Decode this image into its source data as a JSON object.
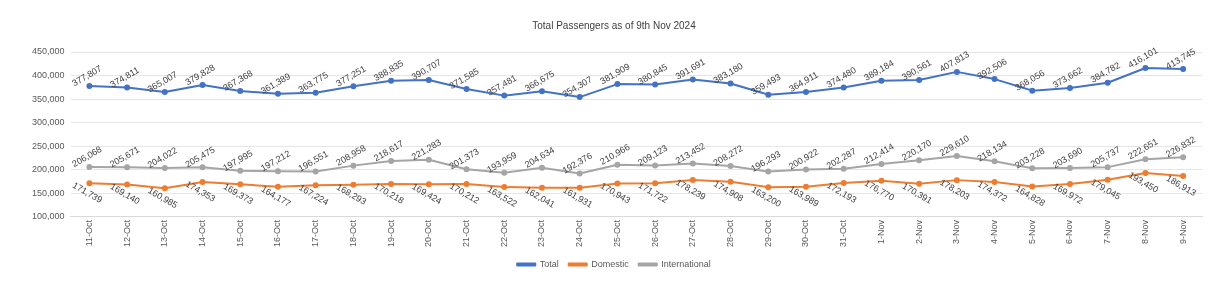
{
  "chart_data": {
    "type": "line",
    "title": "Total Passengers as of 9th Nov 2024",
    "categories": [
      "11-Oct",
      "12-Oct",
      "13-Oct",
      "14-Oct",
      "15-Oct",
      "16-Oct",
      "17-Oct",
      "18-Oct",
      "19-Oct",
      "20-Oct",
      "21-Oct",
      "22-Oct",
      "23-Oct",
      "24-Oct",
      "25-Oct",
      "26-Oct",
      "27-Oct",
      "28-Oct",
      "29-Oct",
      "30-Oct",
      "31-Oct",
      "1-Nov",
      "2-Nov",
      "3-Nov",
      "4-Nov",
      "5-Nov",
      "6-Nov",
      "7-Nov",
      "8-Nov",
      "9-Nov"
    ],
    "series": [
      {
        "name": "Total",
        "color": "#4472c4",
        "values": [
          377807,
          374811,
          365007,
          379828,
          367368,
          361389,
          363775,
          377251,
          388835,
          390707,
          371585,
          357481,
          366675,
          354307,
          381909,
          380845,
          391691,
          383180,
          359493,
          364911,
          374480,
          389184,
          390561,
          407813,
          392506,
          368056,
          373662,
          384782,
          416101,
          413745
        ],
        "value_labels": [
          "377,807",
          "374,811",
          "365,007",
          "379,828",
          "367,368",
          "361,389",
          "363,775",
          "377,251",
          "388,835",
          "390,707",
          "371,585",
          "357,481",
          "366,675",
          "354,307",
          "381,909",
          "380,845",
          "391,691",
          "383,180",
          "359,493",
          "364,911",
          "374,480",
          "389,184",
          "390,561",
          "407,813",
          "392,506",
          "368,056",
          "373,662",
          "384,782",
          "416,101",
          "413,745"
        ]
      },
      {
        "name": "Domestic",
        "color": "#ed7d31",
        "values": [
          171739,
          169140,
          160985,
          174353,
          169373,
          164177,
          167224,
          168293,
          170218,
          169424,
          170212,
          163522,
          162041,
          161931,
          170943,
          171722,
          178239,
          174908,
          163200,
          163989,
          172193,
          176770,
          170391,
          178203,
          174372,
          164828,
          169972,
          179045,
          193450,
          186913
        ],
        "value_labels": [
          "171,739",
          "169,140",
          "160,985",
          "174,353",
          "169,373",
          "164,177",
          "167,224",
          "168,293",
          "170,218",
          "169,424",
          "170,212",
          "163,522",
          "162,041",
          "161,931",
          "170,943",
          "171,722",
          "178,239",
          "174,908",
          "163,200",
          "163,989",
          "172,193",
          "176,770",
          "170,391",
          "178,203",
          "174,372",
          "164,828",
          "169,972",
          "179,045",
          "193,450",
          "186,913"
        ]
      },
      {
        "name": "International",
        "color": "#a5a5a5",
        "values": [
          206068,
          205671,
          204022,
          205475,
          197995,
          197212,
          196551,
          208958,
          218617,
          221283,
          201373,
          193959,
          204634,
          192376,
          210966,
          209123,
          213452,
          208272,
          196293,
          200922,
          202287,
          212414,
          220170,
          229610,
          218134,
          203228,
          203690,
          205737,
          222651,
          226832
        ],
        "value_labels": [
          "206,068",
          "205,671",
          "204,022",
          "205,475",
          "197,995",
          "197,212",
          "196,551",
          "208,958",
          "218,617",
          "221,283",
          "201,373",
          "193,959",
          "204,634",
          "192,376",
          "210,966",
          "209,123",
          "213,452",
          "208,272",
          "196,293",
          "200,922",
          "202,287",
          "212,414",
          "220,170",
          "229,610",
          "218,134",
          "203,228",
          "203,690",
          "205,737",
          "222,651",
          "226,832"
        ]
      }
    ],
    "ylim": [
      100000,
      450000
    ],
    "yticks": [
      {
        "value": 100000,
        "label": "100,000"
      },
      {
        "value": 150000,
        "label": "150,000"
      },
      {
        "value": 200000,
        "label": "200,000"
      },
      {
        "value": 250000,
        "label": "250,000"
      },
      {
        "value": 300000,
        "label": "300,000"
      },
      {
        "value": 350000,
        "label": "350,000"
      },
      {
        "value": 400000,
        "label": "400,000"
      },
      {
        "value": 450000,
        "label": "450,000"
      }
    ],
    "grid": "y",
    "legend": "bottom",
    "marker": "circle",
    "line_style": "solid"
  }
}
